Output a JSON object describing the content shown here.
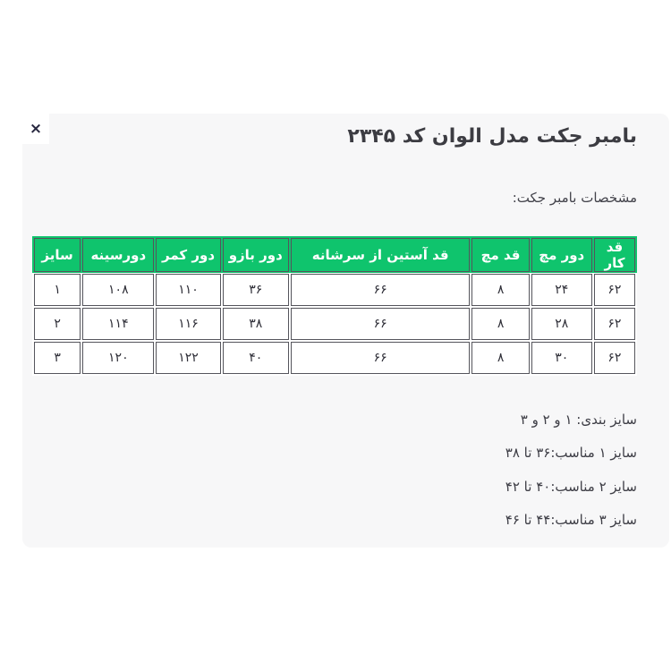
{
  "close": {
    "label": "×"
  },
  "title": "بامبر جکت مدل الوان کد ۲۳۴۵",
  "subtitle": "مشخصات بامبر جکت:",
  "table": {
    "headers": [
      "قد کار",
      "دور مچ",
      "قد مچ",
      "قد آستین از سرشانه",
      "دور بازو",
      "دور کمر",
      "دورسینه",
      "سایز"
    ],
    "rows": [
      [
        "۶۲",
        "۲۴",
        "۸",
        "۶۶",
        "۳۶",
        "۱۱۰",
        "۱۰۸",
        "۱"
      ],
      [
        "۶۲",
        "۲۸",
        "۸",
        "۶۶",
        "۳۸",
        "۱۱۶",
        "۱۱۴",
        "۲"
      ],
      [
        "۶۲",
        "۳۰",
        "۸",
        "۶۶",
        "۴۰",
        "۱۲۲",
        "۱۲۰",
        "۳"
      ]
    ]
  },
  "notes": [
    "سایز بندی: ۱ و ۲ و ۳",
    "سایز ۱ مناسب:۳۶ تا ۳۸",
    "سایز ۲ مناسب:۴۰ تا ۴۲",
    "سایز ۳ مناسب:۴۴ تا ۴۶"
  ],
  "colors": {
    "header_green": "#0fc46d",
    "cell_border": "#55555c",
    "panel_background": "#f7f7f8"
  }
}
